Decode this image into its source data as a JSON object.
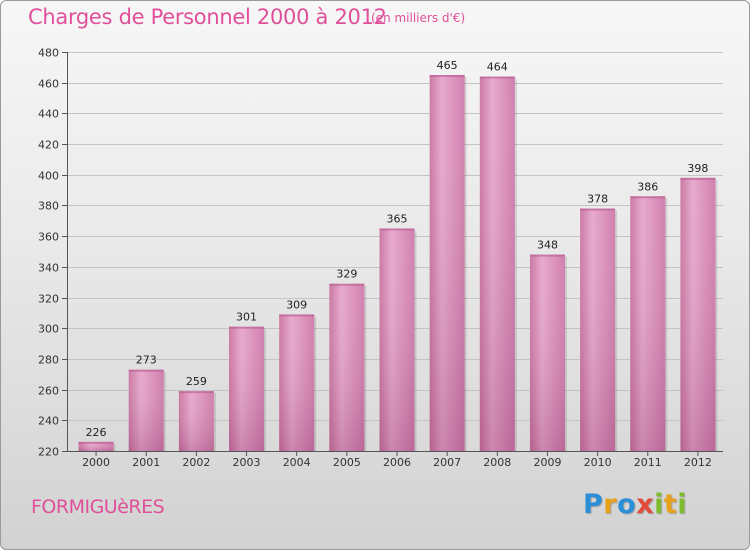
{
  "header": {
    "title": "Charges de Personnel 2000 à 2012",
    "subtitle": "(en milliers d'€)"
  },
  "footer": {
    "commune": "FORMIGUèRES",
    "logo_letters": [
      {
        "ch": "P",
        "color": "#2b8fd8"
      },
      {
        "ch": "r",
        "color": "#e8a21a"
      },
      {
        "ch": "o",
        "color": "#2b8fd8"
      },
      {
        "ch": "x",
        "color": "#e24a3b"
      },
      {
        "ch": "i",
        "color": "#7cbc2c"
      },
      {
        "ch": "t",
        "color": "#e8a21a"
      },
      {
        "ch": "i",
        "color": "#7cbc2c"
      }
    ]
  },
  "chart_data": {
    "type": "bar",
    "categories": [
      "2000",
      "2001",
      "2002",
      "2003",
      "2004",
      "2005",
      "2006",
      "2007",
      "2008",
      "2009",
      "2010",
      "2011",
      "2012"
    ],
    "values": [
      226,
      273,
      259,
      301,
      309,
      329,
      365,
      465,
      464,
      348,
      378,
      386,
      398
    ],
    "ylim": [
      220,
      480
    ],
    "yticks": [
      220,
      240,
      260,
      280,
      300,
      320,
      340,
      360,
      380,
      400,
      420,
      440,
      460,
      480
    ],
    "grid": true,
    "bar_color": "#d98cb8"
  }
}
